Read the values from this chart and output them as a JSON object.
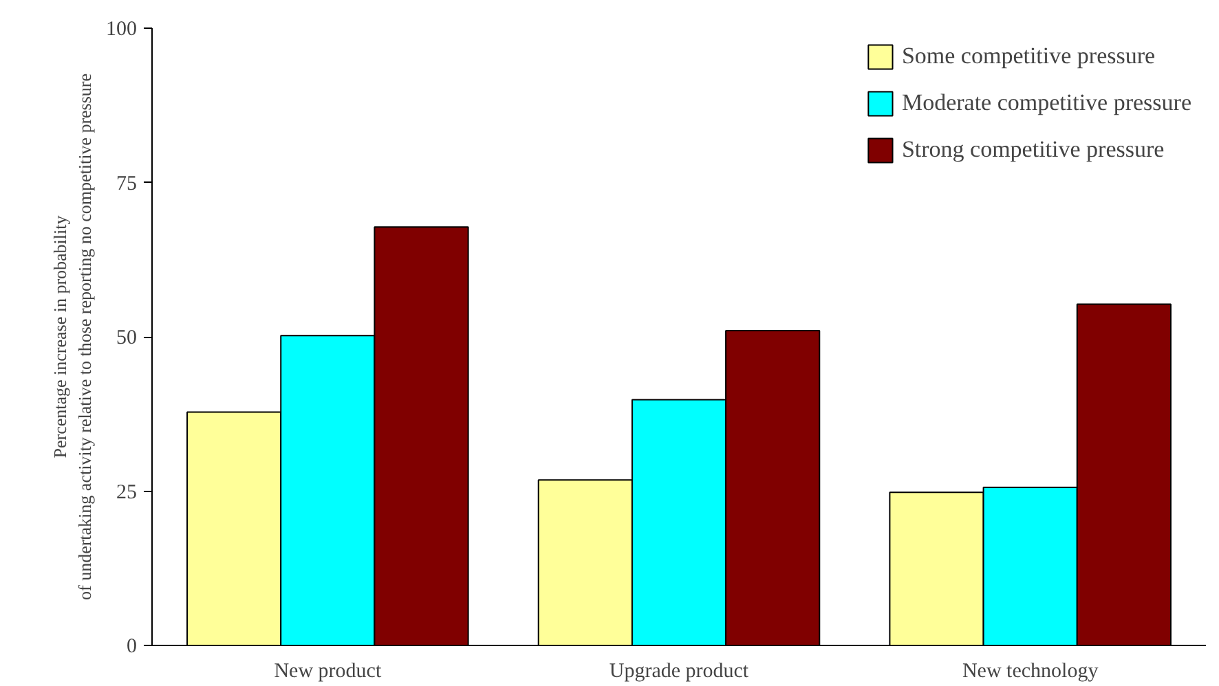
{
  "chart_data": {
    "type": "bar",
    "ylabel": "Percentage increase in probability\nof undertaking activity relative to those reporting no competitive pressure",
    "categories": [
      "New product",
      "Upgrade product",
      "New technology"
    ],
    "series": [
      {
        "name": "Some competitive pressure",
        "color": "#ffff99",
        "values": [
          37.8,
          26.8,
          24.8
        ]
      },
      {
        "name": "Moderate competitive pressure",
        "color": "#00ffff",
        "values": [
          50.2,
          39.8,
          25.6
        ]
      },
      {
        "name": "Strong competitive pressure",
        "color": "#800000",
        "values": [
          67.8,
          51.0,
          55.3
        ]
      }
    ],
    "ylim": [
      0,
      100
    ],
    "yticks": [
      0,
      25,
      50,
      75,
      100
    ],
    "grid": false,
    "legend": "top right"
  }
}
